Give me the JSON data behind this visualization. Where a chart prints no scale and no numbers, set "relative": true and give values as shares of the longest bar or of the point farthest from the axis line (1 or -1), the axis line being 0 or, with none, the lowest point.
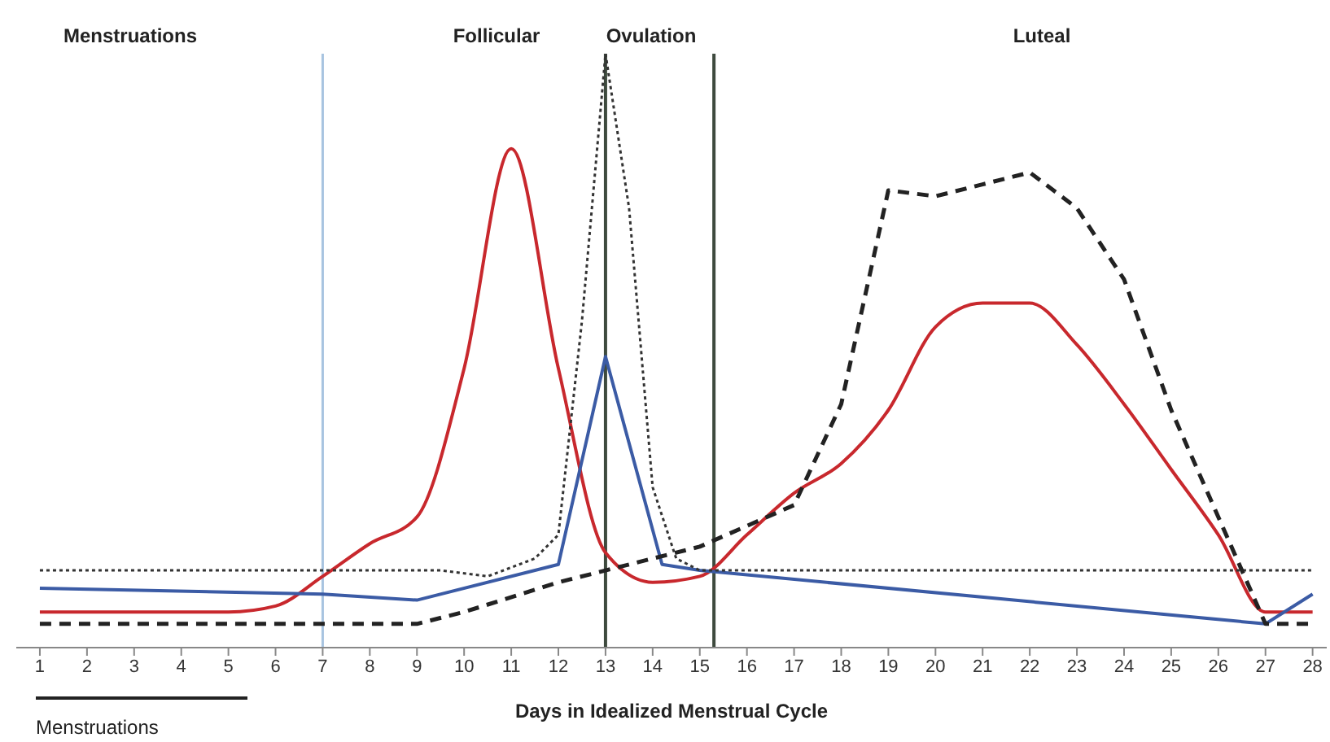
{
  "chart_data": {
    "type": "line",
    "relative": true,
    "xlabel": "Days in Idealized Menstrual Cycle",
    "annotations": [
      "Menstruations",
      "Follicular",
      "Ovulation",
      "Luteal",
      "Menstruations"
    ],
    "xlim": [
      0.5,
      28.3
    ],
    "xticks": [
      1,
      2,
      3,
      4,
      5,
      6,
      7,
      8,
      9,
      10,
      11,
      12,
      13,
      14,
      15,
      16,
      17,
      18,
      19,
      20,
      21,
      22,
      23,
      24,
      25,
      26,
      27,
      28
    ],
    "grid": false,
    "legend": false,
    "marker": "none",
    "ref_lines": [
      {
        "axis": "x",
        "value": 7,
        "color": "#a8c4e0"
      },
      {
        "axis": "x",
        "value": 13,
        "color": "#3e4a3e"
      },
      {
        "axis": "x",
        "value": 15.3,
        "color": "#3e4a3e"
      }
    ],
    "series": [
      {
        "color": "#c8282d",
        "line_style": "solid",
        "x": [
          1,
          5,
          6,
          7,
          8,
          9,
          10,
          11,
          12,
          13,
          14,
          15,
          16,
          17,
          18,
          19,
          20,
          21,
          22,
          23,
          24,
          25,
          26,
          27,
          28
        ],
        "values": [
          0.06,
          0.06,
          0.07,
          0.12,
          0.175,
          0.22,
          0.47,
          0.84,
          0.47,
          0.16,
          0.11,
          0.12,
          0.19,
          0.26,
          0.31,
          0.4,
          0.54,
          0.58,
          0.58,
          0.51,
          0.41,
          0.3,
          0.19,
          0.06,
          0.06
        ]
      },
      {
        "color": "#3b5ba5",
        "line_style": "solid",
        "x": [
          1,
          7,
          9,
          12,
          13,
          14.2,
          15,
          27,
          28
        ],
        "values": [
          0.1,
          0.09,
          0.08,
          0.14,
          0.49,
          0.14,
          0.13,
          0.04,
          0.09
        ]
      },
      {
        "color": "#333333",
        "line_style": "dotted",
        "x": [
          1,
          9.5,
          10.5,
          11.5,
          12,
          12.5,
          13,
          13.5,
          14,
          14.5,
          15,
          28
        ],
        "values": [
          0.13,
          0.13,
          0.12,
          0.15,
          0.19,
          0.55,
          1,
          0.74,
          0.27,
          0.15,
          0.13,
          0.13
        ]
      },
      {
        "color": "#222222",
        "line_style": "dashed",
        "x": [
          1,
          9,
          10,
          12,
          13,
          15,
          17,
          18,
          19,
          20,
          21,
          22,
          23,
          24,
          25,
          26,
          27,
          28
        ],
        "values": [
          0.04,
          0.04,
          0.06,
          0.11,
          0.13,
          0.17,
          0.24,
          0.41,
          0.77,
          0.76,
          0.78,
          0.8,
          0.74,
          0.62,
          0.4,
          0.22,
          0.04,
          0.04
        ]
      }
    ]
  }
}
